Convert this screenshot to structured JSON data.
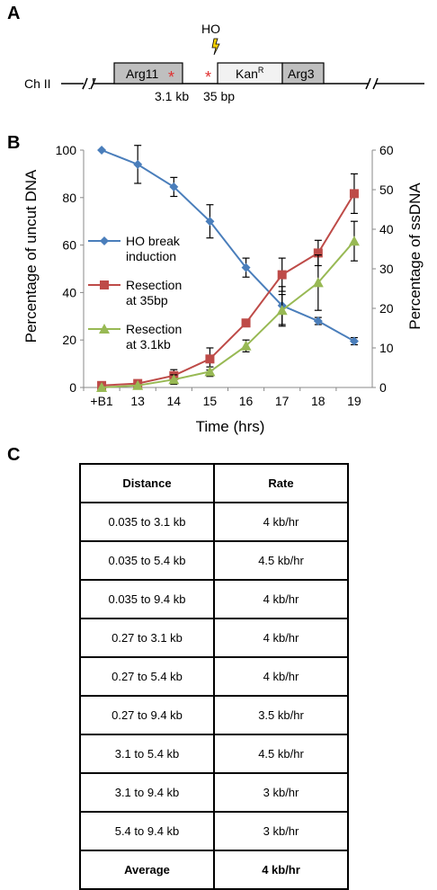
{
  "panels": {
    "a": "A",
    "b": "B",
    "c": "C"
  },
  "diagram": {
    "chromosome_label": "Ch II",
    "ho_label": "HO",
    "gene_left": "Arg11",
    "gene_kan_base": "Kan",
    "gene_kan_sup": "R",
    "gene_right": "Arg3",
    "asterisk": "*",
    "dist_left": "3.1 kb",
    "dist_right": "35 bp"
  },
  "chart_data": {
    "type": "line",
    "categories": [
      "+B1",
      "13",
      "14",
      "15",
      "16",
      "17",
      "18",
      "19"
    ],
    "xlabel": "Time (hrs)",
    "ylabel": "Percentage of uncut DNA",
    "ylabel_right": "Percentage of ssDNA",
    "ylim": [
      0,
      100
    ],
    "ylim_right": [
      0,
      60
    ],
    "yticks": [
      "0",
      "20",
      "40",
      "60",
      "80",
      "100"
    ],
    "yticks_right": [
      "0",
      "10",
      "20",
      "30",
      "40",
      "50",
      "60"
    ],
    "legend_position": "left",
    "series": [
      {
        "name": "HO break induction",
        "name_lines": [
          "HO break",
          "induction"
        ],
        "axis": "left",
        "color": "#4a7ebb",
        "marker": "diamond",
        "values": [
          100,
          94,
          84.5,
          70,
          50.5,
          34.5,
          28,
          19.5
        ],
        "errors": [
          0,
          8,
          4,
          7,
          4,
          8,
          1.5,
          1.5
        ]
      },
      {
        "name": "Resection at 35bp",
        "name_lines": [
          "Resection",
          "at 35bp"
        ],
        "axis": "right",
        "color": "#be4b48",
        "marker": "square",
        "values": [
          0.5,
          1,
          3,
          7.2,
          16.3,
          28.5,
          34,
          49
        ],
        "errors": [
          0,
          0,
          1.5,
          2.8,
          0,
          4.2,
          3.2,
          5
        ]
      },
      {
        "name": "Resection at 3.1kb",
        "name_lines": [
          "Resection",
          "at 3.1kb"
        ],
        "axis": "right",
        "color": "#98b954",
        "marker": "triangle",
        "values": [
          0,
          0.5,
          2,
          4,
          10.5,
          19.5,
          26.5,
          37
        ],
        "errors": [
          0,
          0,
          1.2,
          1.2,
          1.5,
          4,
          7,
          5
        ]
      }
    ]
  },
  "table": {
    "headers": [
      "Distance",
      "Rate"
    ],
    "rows": [
      [
        "0.035 to 3.1 kb",
        "4 kb/hr"
      ],
      [
        "0.035 to 5.4 kb",
        "4.5 kb/hr"
      ],
      [
        "0.035 to 9.4 kb",
        "4 kb/hr"
      ],
      [
        "0.27 to 3.1 kb",
        "4 kb/hr"
      ],
      [
        "0.27 to 5.4 kb",
        "4 kb/hr"
      ],
      [
        "0.27 to 9.4 kb",
        "3.5 kb/hr"
      ],
      [
        "3.1 to 5.4 kb",
        "4.5 kb/hr"
      ],
      [
        "3.1 to 9.4 kb",
        "3 kb/hr"
      ],
      [
        "5.4 to 9.4 kb",
        "3 kb/hr"
      ]
    ],
    "average": [
      "Average",
      "4 kb/hr"
    ]
  }
}
